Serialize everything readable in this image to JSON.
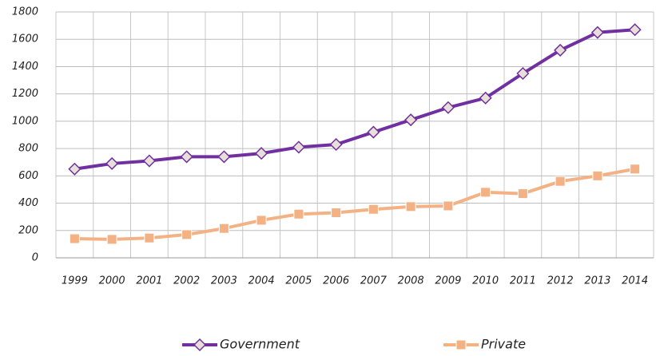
{
  "chart_data": {
    "type": "line",
    "categories": [
      "1999",
      "2000",
      "2001",
      "2002",
      "2003",
      "2004",
      "2005",
      "2006",
      "2007",
      "2008",
      "2009",
      "2010",
      "2011",
      "2012",
      "2013",
      "2014"
    ],
    "series": [
      {
        "name": "Government",
        "color": "#7030a0",
        "marker": "diamond",
        "values": [
          650,
          690,
          710,
          740,
          740,
          765,
          810,
          830,
          920,
          1010,
          1100,
          1170,
          1350,
          1520,
          1650,
          1670
        ]
      },
      {
        "name": "Private",
        "color": "#f4b183",
        "marker": "square",
        "values": [
          140,
          135,
          145,
          170,
          215,
          275,
          320,
          330,
          355,
          375,
          380,
          480,
          470,
          560,
          600,
          650
        ]
      }
    ],
    "ylim": [
      0,
      1800
    ],
    "yticks": [
      0,
      200,
      400,
      600,
      800,
      1000,
      1200,
      1400,
      1600,
      1800
    ],
    "grid": true,
    "legend": "bottom"
  }
}
